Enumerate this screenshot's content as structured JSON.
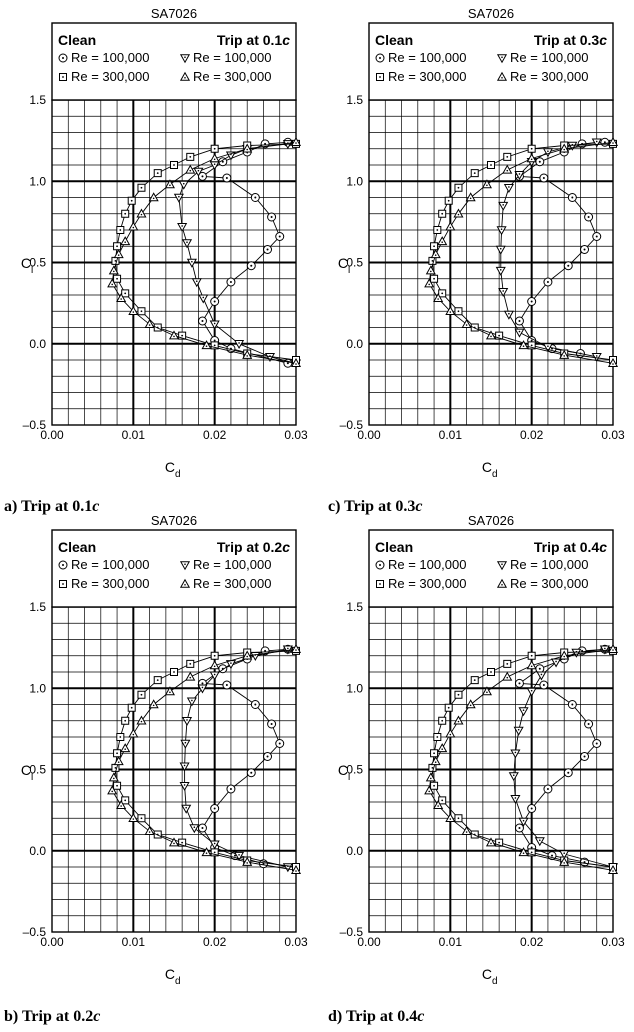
{
  "chart_data": [
    {
      "type": "line",
      "title": "SA7026",
      "caption": {
        "prefix": "a) Trip at 0.1",
        "italic": "c"
      },
      "legend": {
        "left_header": "Clean",
        "right_header_prefix": "Trip at 0.1",
        "right_header_italic": "c",
        "entries": [
          "Re = 100,000",
          "Re = 100,000",
          "Re = 300,000",
          "Re = 300,000"
        ]
      },
      "xlabel": {
        "main": "C",
        "sub": "d"
      },
      "ylabel": {
        "main": "C",
        "sub": "l"
      },
      "xlim": [
        0,
        0.03
      ],
      "ylim": [
        -0.5,
        1.5
      ],
      "xticks": [
        "0.00",
        "0.01",
        "0.02",
        "0.03"
      ],
      "yticks": [
        "–0.5",
        "0.0",
        "0.5",
        "1.0",
        "1.5"
      ],
      "series": [
        {
          "marker": "circle",
          "x": [
            0.029,
            0.022,
            0.02,
            0.0185,
            0.02,
            0.022,
            0.0245,
            0.0265,
            0.028,
            0.027,
            0.025,
            0.0215,
            0.0185,
            0.021,
            0.024,
            0.0262,
            0.029
          ],
          "y": [
            -0.12,
            -0.03,
            0.02,
            0.14,
            0.26,
            0.38,
            0.48,
            0.58,
            0.66,
            0.78,
            0.9,
            1.02,
            1.03,
            1.12,
            1.18,
            1.23,
            1.24
          ]
        },
        {
          "marker": "triangle-down",
          "x": [
            0.03,
            0.0268,
            0.023,
            0.02,
            0.0186,
            0.0178,
            0.0172,
            0.0166,
            0.016,
            0.0156,
            0.0162,
            0.018,
            0.02,
            0.022,
            0.024,
            0.029
          ],
          "y": [
            -0.12,
            -0.08,
            0.0,
            0.12,
            0.28,
            0.38,
            0.5,
            0.62,
            0.72,
            0.9,
            0.98,
            1.06,
            1.1,
            1.16,
            1.2,
            1.23
          ]
        },
        {
          "marker": "square",
          "x": [
            0.03,
            0.024,
            0.02,
            0.016,
            0.013,
            0.011,
            0.009,
            0.008,
            0.0078,
            0.008,
            0.0084,
            0.009,
            0.0098,
            0.011,
            0.013,
            0.015,
            0.017,
            0.02,
            0.024,
            0.03
          ],
          "y": [
            -0.1,
            -0.06,
            -0.01,
            0.05,
            0.1,
            0.2,
            0.31,
            0.4,
            0.51,
            0.6,
            0.7,
            0.8,
            0.88,
            0.96,
            1.05,
            1.1,
            1.15,
            1.2,
            1.22,
            1.23
          ]
        },
        {
          "marker": "triangle-up",
          "x": [
            0.03,
            0.024,
            0.019,
            0.015,
            0.012,
            0.01,
            0.0085,
            0.0074,
            0.0076,
            0.0082,
            0.009,
            0.01,
            0.011,
            0.0125,
            0.0145,
            0.017,
            0.02,
            0.024,
            0.03
          ],
          "y": [
            -0.12,
            -0.07,
            -0.01,
            0.05,
            0.12,
            0.2,
            0.28,
            0.37,
            0.45,
            0.55,
            0.63,
            0.72,
            0.8,
            0.9,
            0.98,
            1.07,
            1.14,
            1.2,
            1.24
          ]
        }
      ]
    },
    {
      "type": "line",
      "title": "SA7026",
      "caption": {
        "prefix": "c) Trip at 0.3",
        "italic": "c"
      },
      "legend": {
        "left_header": "Clean",
        "right_header_prefix": "Trip at 0.3",
        "right_header_italic": "c",
        "entries": [
          "Re = 100,000",
          "Re = 100,000",
          "Re = 300,000",
          "Re = 300,000"
        ]
      },
      "xlabel": {
        "main": "C",
        "sub": "d"
      },
      "ylabel": {
        "main": "C",
        "sub": "l"
      },
      "xlim": [
        0,
        0.03
      ],
      "ylim": [
        -0.5,
        1.5
      ],
      "xticks": [
        "0.00",
        "0.01",
        "0.02",
        "0.03"
      ],
      "yticks": [
        "–0.5",
        "0.0",
        "0.5",
        "1.0",
        "1.5"
      ],
      "series": [
        {
          "marker": "circle",
          "x": [
            0.026,
            0.0225,
            0.02,
            0.0185,
            0.02,
            0.022,
            0.0245,
            0.0265,
            0.028,
            0.027,
            0.025,
            0.0215,
            0.0185,
            0.021,
            0.024,
            0.0262,
            0.029
          ],
          "y": [
            -0.06,
            -0.03,
            0.02,
            0.14,
            0.26,
            0.38,
            0.48,
            0.58,
            0.66,
            0.78,
            0.9,
            1.02,
            1.03,
            1.12,
            1.18,
            1.23,
            1.24
          ]
        },
        {
          "marker": "triangle-down",
          "x": [
            0.028,
            0.022,
            0.0185,
            0.0172,
            0.0165,
            0.0162,
            0.0162,
            0.0163,
            0.0165,
            0.0172,
            0.0185,
            0.02,
            0.022,
            0.025,
            0.028
          ],
          "y": [
            -0.08,
            -0.02,
            0.07,
            0.18,
            0.32,
            0.45,
            0.58,
            0.7,
            0.85,
            0.96,
            1.04,
            1.12,
            1.18,
            1.22,
            1.24
          ]
        },
        {
          "marker": "square",
          "x": [
            0.03,
            0.024,
            0.02,
            0.016,
            0.013,
            0.011,
            0.009,
            0.008,
            0.0078,
            0.008,
            0.0084,
            0.009,
            0.0098,
            0.011,
            0.013,
            0.015,
            0.017,
            0.02,
            0.024,
            0.03
          ],
          "y": [
            -0.1,
            -0.06,
            -0.01,
            0.05,
            0.1,
            0.2,
            0.31,
            0.4,
            0.51,
            0.6,
            0.7,
            0.8,
            0.88,
            0.96,
            1.05,
            1.1,
            1.15,
            1.2,
            1.22,
            1.23
          ]
        },
        {
          "marker": "triangle-up",
          "x": [
            0.03,
            0.024,
            0.019,
            0.015,
            0.012,
            0.01,
            0.0085,
            0.0074,
            0.0076,
            0.0082,
            0.009,
            0.01,
            0.011,
            0.0125,
            0.0145,
            0.017,
            0.02,
            0.024,
            0.03
          ],
          "y": [
            -0.12,
            -0.07,
            -0.01,
            0.05,
            0.12,
            0.2,
            0.28,
            0.37,
            0.45,
            0.55,
            0.63,
            0.72,
            0.8,
            0.9,
            0.98,
            1.07,
            1.14,
            1.2,
            1.24
          ]
        }
      ]
    },
    {
      "type": "line",
      "title": "SA7026",
      "caption": {
        "prefix": "b) Trip at 0.2",
        "italic": "c"
      },
      "legend": {
        "left_header": "Clean",
        "right_header_prefix": "Trip at 0.2",
        "right_header_italic": "c",
        "entries": [
          "Re = 100,000",
          "Re = 100,000",
          "Re = 300,000",
          "Re = 300,000"
        ]
      },
      "xlabel": {
        "main": "C",
        "sub": "d"
      },
      "ylabel": {
        "main": "C",
        "sub": "l"
      },
      "xlim": [
        0,
        0.03
      ],
      "ylim": [
        -0.5,
        1.5
      ],
      "xticks": [
        "0.00",
        "0.01",
        "0.02",
        "0.03"
      ],
      "yticks": [
        "–0.5",
        "0.0",
        "0.5",
        "1.0",
        "1.5"
      ],
      "series": [
        {
          "marker": "circle",
          "x": [
            0.026,
            0.0225,
            0.02,
            0.0185,
            0.02,
            0.022,
            0.0245,
            0.0265,
            0.028,
            0.027,
            0.025,
            0.0215,
            0.0185,
            0.021,
            0.024,
            0.0262,
            0.029
          ],
          "y": [
            -0.08,
            -0.03,
            0.02,
            0.14,
            0.26,
            0.38,
            0.48,
            0.58,
            0.66,
            0.78,
            0.9,
            1.02,
            1.03,
            1.12,
            1.18,
            1.23,
            1.24
          ]
        },
        {
          "marker": "triangle-down",
          "x": [
            0.029,
            0.023,
            0.02,
            0.0175,
            0.0165,
            0.0163,
            0.0163,
            0.0164,
            0.0166,
            0.0172,
            0.0185,
            0.02,
            0.022,
            0.025,
            0.029
          ],
          "y": [
            -0.1,
            -0.03,
            0.04,
            0.14,
            0.26,
            0.4,
            0.52,
            0.66,
            0.8,
            0.92,
            1.0,
            1.08,
            1.15,
            1.2,
            1.24
          ]
        },
        {
          "marker": "square",
          "x": [
            0.03,
            0.024,
            0.02,
            0.016,
            0.013,
            0.011,
            0.009,
            0.008,
            0.0078,
            0.008,
            0.0084,
            0.009,
            0.0098,
            0.011,
            0.013,
            0.015,
            0.017,
            0.02,
            0.024,
            0.03
          ],
          "y": [
            -0.1,
            -0.06,
            -0.01,
            0.05,
            0.1,
            0.2,
            0.31,
            0.4,
            0.51,
            0.6,
            0.7,
            0.8,
            0.88,
            0.96,
            1.05,
            1.1,
            1.15,
            1.2,
            1.22,
            1.23
          ]
        },
        {
          "marker": "triangle-up",
          "x": [
            0.03,
            0.024,
            0.019,
            0.015,
            0.012,
            0.01,
            0.0085,
            0.0074,
            0.0076,
            0.0082,
            0.009,
            0.01,
            0.011,
            0.0125,
            0.0145,
            0.017,
            0.02,
            0.024,
            0.03
          ],
          "y": [
            -0.12,
            -0.07,
            -0.01,
            0.05,
            0.12,
            0.2,
            0.28,
            0.37,
            0.45,
            0.55,
            0.63,
            0.72,
            0.8,
            0.9,
            0.98,
            1.07,
            1.14,
            1.2,
            1.24
          ]
        }
      ]
    },
    {
      "type": "line",
      "title": "SA7026",
      "caption": {
        "prefix": "d) Trip at 0.4",
        "italic": "c"
      },
      "legend": {
        "left_header": "Clean",
        "right_header_prefix": "Trip at 0.4",
        "right_header_italic": "c",
        "entries": [
          "Re = 100,000",
          "Re = 100,000",
          "Re = 300,000",
          "Re = 300,000"
        ]
      },
      "xlabel": {
        "main": "C",
        "sub": "d"
      },
      "ylabel": {
        "main": "C",
        "sub": "l"
      },
      "xlim": [
        0,
        0.03
      ],
      "ylim": [
        -0.5,
        1.5
      ],
      "xticks": [
        "0.00",
        "0.01",
        "0.02",
        "0.03"
      ],
      "yticks": [
        "–0.5",
        "0.0",
        "0.5",
        "1.0",
        "1.5"
      ],
      "series": [
        {
          "marker": "circle",
          "x": [
            0.0265,
            0.0225,
            0.02,
            0.0185,
            0.02,
            0.022,
            0.0245,
            0.0265,
            0.028,
            0.027,
            0.025,
            0.0215,
            0.0185,
            0.021,
            0.024,
            0.0262,
            0.029
          ],
          "y": [
            -0.07,
            -0.03,
            0.02,
            0.14,
            0.26,
            0.38,
            0.48,
            0.58,
            0.66,
            0.78,
            0.9,
            1.02,
            1.03,
            1.12,
            1.18,
            1.23,
            1.24
          ]
        },
        {
          "marker": "triangle-down",
          "x": [
            0.03,
            0.024,
            0.021,
            0.019,
            0.018,
            0.0178,
            0.018,
            0.0184,
            0.019,
            0.02,
            0.0212,
            0.023,
            0.0255,
            0.029
          ],
          "y": [
            -0.1,
            -0.02,
            0.06,
            0.18,
            0.32,
            0.46,
            0.6,
            0.74,
            0.86,
            0.98,
            1.08,
            1.16,
            1.22,
            1.24
          ]
        },
        {
          "marker": "square",
          "x": [
            0.03,
            0.024,
            0.02,
            0.016,
            0.013,
            0.011,
            0.009,
            0.008,
            0.0078,
            0.008,
            0.0084,
            0.009,
            0.0098,
            0.011,
            0.013,
            0.015,
            0.017,
            0.02,
            0.024,
            0.03
          ],
          "y": [
            -0.1,
            -0.06,
            -0.01,
            0.05,
            0.1,
            0.2,
            0.31,
            0.4,
            0.51,
            0.6,
            0.7,
            0.8,
            0.88,
            0.96,
            1.05,
            1.1,
            1.15,
            1.2,
            1.22,
            1.23
          ]
        },
        {
          "marker": "triangle-up",
          "x": [
            0.03,
            0.024,
            0.019,
            0.015,
            0.012,
            0.01,
            0.0085,
            0.0074,
            0.0076,
            0.0082,
            0.009,
            0.01,
            0.011,
            0.0125,
            0.0145,
            0.017,
            0.02,
            0.024,
            0.03
          ],
          "y": [
            -0.12,
            -0.07,
            -0.01,
            0.05,
            0.12,
            0.2,
            0.28,
            0.37,
            0.45,
            0.55,
            0.63,
            0.72,
            0.8,
            0.9,
            0.98,
            1.07,
            1.14,
            1.2,
            1.24
          ]
        }
      ]
    }
  ]
}
